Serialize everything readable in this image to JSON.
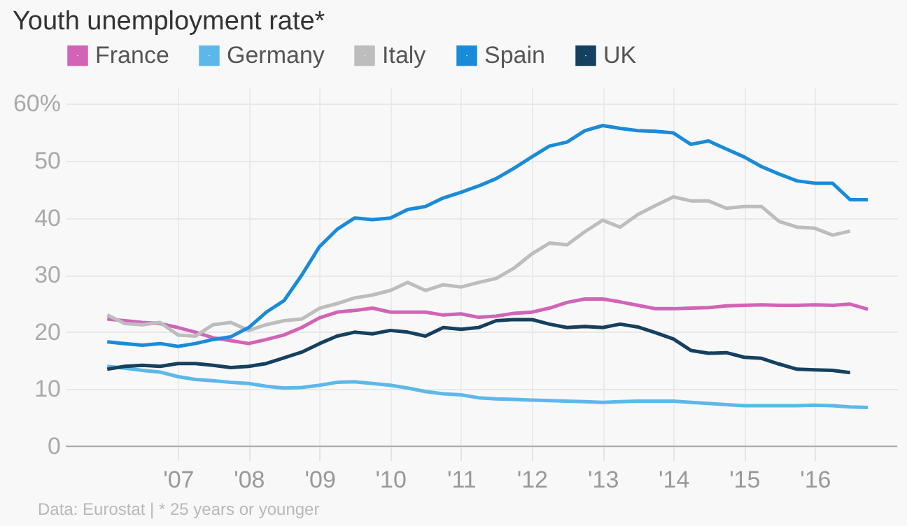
{
  "chart_data": {
    "type": "line",
    "title": "Youth unemployment rate*",
    "x": [
      "2006-01",
      "2006-04",
      "2006-07",
      "2006-10",
      "2007-01",
      "2007-04",
      "2007-07",
      "2007-10",
      "2008-01",
      "2008-04",
      "2008-07",
      "2008-10",
      "2009-01",
      "2009-04",
      "2009-07",
      "2009-10",
      "2010-01",
      "2010-04",
      "2010-07",
      "2010-10",
      "2011-01",
      "2011-04",
      "2011-07",
      "2011-10",
      "2012-01",
      "2012-04",
      "2012-07",
      "2012-10",
      "2013-01",
      "2013-04",
      "2013-07",
      "2013-10",
      "2014-01",
      "2014-04",
      "2014-07",
      "2014-10",
      "2015-01",
      "2015-04",
      "2015-07",
      "2015-10",
      "2016-01",
      "2016-04",
      "2016-07",
      "2016-10"
    ],
    "series": [
      {
        "name": "France",
        "color": "#d264b6",
        "values": [
          22.3,
          22,
          21.7,
          21.5,
          20.8,
          20,
          19,
          18.5,
          18,
          18.7,
          19.5,
          20.8,
          22.5,
          23.5,
          23.8,
          24.2,
          23.5,
          23.5,
          23.5,
          23,
          23.2,
          22.6,
          22.8,
          23.3,
          23.5,
          24.2,
          25.2,
          25.8,
          25.8,
          25.3,
          24.7,
          24.1,
          24.1,
          24.2,
          24.3,
          24.6,
          24.7,
          24.8,
          24.7,
          24.7,
          24.8,
          24.7,
          24.9,
          24
        ]
      },
      {
        "name": "Germany",
        "color": "#5cb8ea",
        "values": [
          14,
          13.7,
          13.3,
          13,
          12.2,
          11.7,
          11.5,
          11.2,
          11,
          10.5,
          10.2,
          10.3,
          10.7,
          11.2,
          11.3,
          11,
          10.7,
          10.2,
          9.6,
          9.2,
          9,
          8.5,
          8.3,
          8.2,
          8.1,
          8,
          7.9,
          7.8,
          7.7,
          7.8,
          7.9,
          7.9,
          7.9,
          7.7,
          7.5,
          7.3,
          7.1,
          7.1,
          7.1,
          7.1,
          7.2,
          7.1,
          6.9,
          6.8
        ]
      },
      {
        "name": "Italy",
        "color": "#bdbdbd",
        "values": [
          23,
          21.5,
          21.3,
          21.7,
          19.5,
          19.3,
          21.3,
          21.7,
          20.3,
          21.3,
          22,
          22.3,
          24.2,
          25,
          26,
          26.5,
          27.3,
          28.7,
          27.3,
          28.3,
          27.9,
          28.7,
          29.4,
          31.2,
          33.7,
          35.6,
          35.3,
          37.6,
          39.6,
          38.4,
          40.6,
          42.2,
          43.7,
          43,
          43,
          41.7,
          42,
          42,
          39.4,
          38.4,
          38.2,
          37,
          37.7,
          null
        ]
      },
      {
        "name": "Spain",
        "color": "#1a8bd8",
        "values": [
          18.3,
          18,
          17.7,
          18,
          17.5,
          18,
          18.7,
          19.2,
          20.8,
          23.5,
          25.5,
          30,
          35,
          38,
          40,
          39.7,
          40,
          41.5,
          42,
          43.5,
          44.5,
          45.6,
          46.9,
          48.7,
          50.7,
          52.6,
          53.3,
          55.3,
          56.2,
          55.7,
          55.3,
          55.2,
          54.9,
          52.9,
          53.5,
          52.1,
          50.7,
          49,
          47.7,
          46.5,
          46.1,
          46.1,
          43.2,
          43.2
        ]
      },
      {
        "name": "UK",
        "color": "#15405f",
        "values": [
          13.5,
          14,
          14.2,
          14,
          14.5,
          14.5,
          14.2,
          13.8,
          14,
          14.5,
          15.5,
          16.5,
          18,
          19.3,
          20,
          19.7,
          20.3,
          20,
          19.3,
          20.8,
          20.5,
          20.8,
          22,
          22.2,
          22.2,
          21.4,
          20.8,
          21,
          20.8,
          21.4,
          20.9,
          19.9,
          18.8,
          16.8,
          16.3,
          16.4,
          15.6,
          15.4,
          14.4,
          13.5,
          13.4,
          13.3,
          12.9,
          null
        ]
      }
    ],
    "xlim": [
      "2005-06",
      "2017-03"
    ],
    "xticks": [
      {
        "value": "2007",
        "label": "'07"
      },
      {
        "value": "2008",
        "label": "'08"
      },
      {
        "value": "2009",
        "label": "'09"
      },
      {
        "value": "2010",
        "label": "'10"
      },
      {
        "value": "2011",
        "label": "'11"
      },
      {
        "value": "2012",
        "label": "'12"
      },
      {
        "value": "2013",
        "label": "'13"
      },
      {
        "value": "2014",
        "label": "'14"
      },
      {
        "value": "2015",
        "label": "'15"
      },
      {
        "value": "2016",
        "label": "'16"
      }
    ],
    "ylim": [
      0,
      63
    ],
    "yticks": [
      0,
      10,
      20,
      30,
      40,
      50,
      {
        "value": 60,
        "label": "60%"
      }
    ],
    "grid": true,
    "legend": "top left",
    "annotations": [
      "Data: Eurostat | * 25 years or younger"
    ]
  }
}
